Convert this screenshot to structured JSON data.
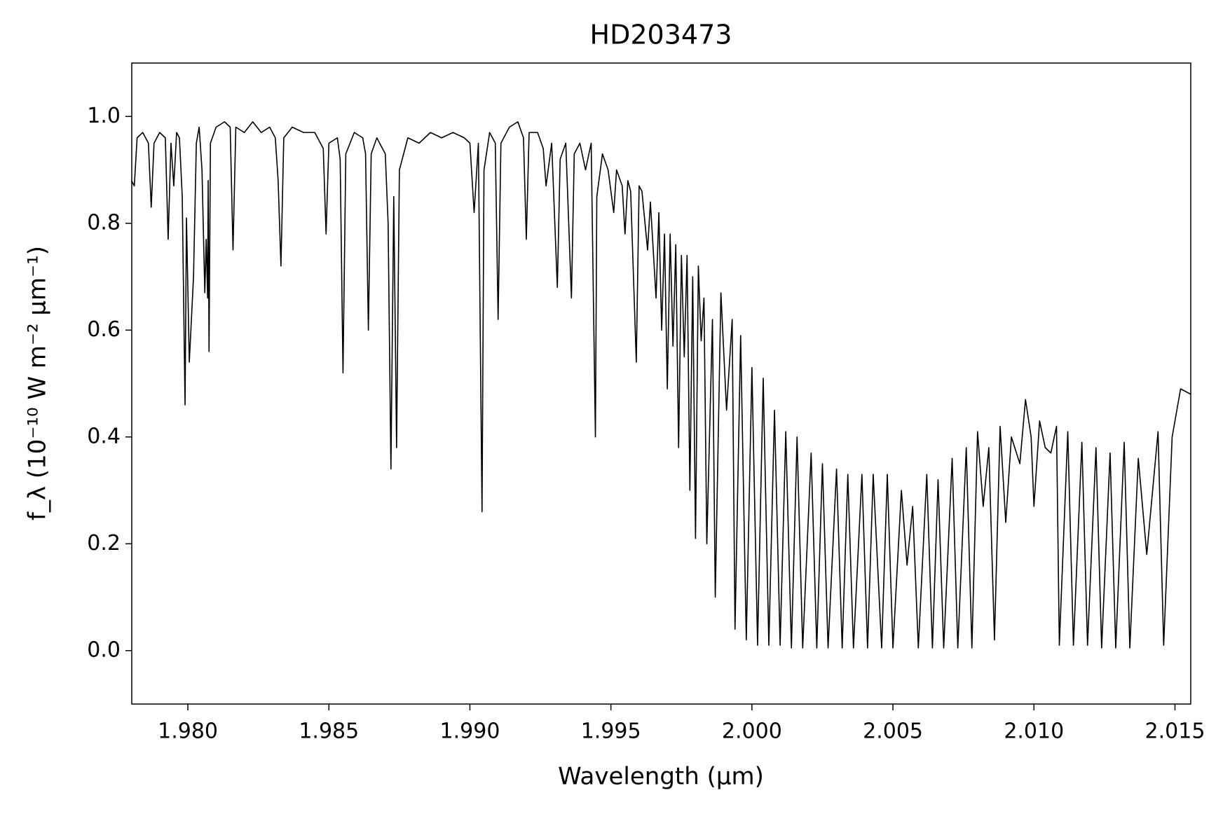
{
  "chart_data": {
    "type": "line",
    "title": "HD203473",
    "xlabel": "Wavelength (μm)",
    "ylabel": "f_λ (10⁻¹⁰ W m⁻² μm⁻¹)",
    "xlim": [
      1.97801,
      2.01556
    ],
    "ylim": [
      -0.1,
      1.1
    ],
    "xticks": [
      {
        "value": 1.98,
        "label": "1.980"
      },
      {
        "value": 1.985,
        "label": "1.985"
      },
      {
        "value": 1.99,
        "label": "1.990"
      },
      {
        "value": 1.995,
        "label": "1.995"
      },
      {
        "value": 2.0,
        "label": "2.000"
      },
      {
        "value": 2.005,
        "label": "2.005"
      },
      {
        "value": 2.01,
        "label": "2.010"
      },
      {
        "value": 2.015,
        "label": "2.015"
      }
    ],
    "yticks": [
      {
        "value": 0,
        "label": "0.0"
      },
      0.2,
      0.4,
      0.6,
      0.8,
      {
        "value": 1,
        "label": "1.0"
      }
    ],
    "grid": false,
    "x": [
      1.978,
      1.9781,
      1.9782,
      1.9784,
      1.9786,
      1.9787,
      1.9788,
      1.979,
      1.9792,
      1.9793,
      1.9794,
      1.9795,
      1.9796,
      1.9797,
      1.9798,
      1.9799,
      1.97995,
      1.98005,
      1.9802,
      1.9803,
      1.9804,
      1.9805,
      1.9806,
      1.98065,
      1.9807,
      1.98072,
      1.98075,
      1.9808,
      1.981,
      1.9813,
      1.9815,
      1.9816,
      1.9817,
      1.982,
      1.9823,
      1.9826,
      1.9829,
      1.9831,
      1.9832,
      1.9833,
      1.9834,
      1.9837,
      1.9841,
      1.9845,
      1.9848,
      1.9849,
      1.985,
      1.9853,
      1.9854,
      1.9855,
      1.9856,
      1.9859,
      1.9862,
      1.9863,
      1.9864,
      1.9865,
      1.9867,
      1.987,
      1.9871,
      1.9872,
      1.9873,
      1.9874,
      1.9875,
      1.9878,
      1.9882,
      1.9886,
      1.989,
      1.9894,
      1.9898,
      1.99,
      1.99015,
      1.9903,
      1.99043,
      1.9905,
      1.9907,
      1.9909,
      1.991,
      1.9911,
      1.9914,
      1.9917,
      1.9919,
      1.992,
      1.9921,
      1.9924,
      1.9926,
      1.9927,
      1.9929,
      1.9931,
      1.9932,
      1.9934,
      1.9936,
      1.9937,
      1.9939,
      1.9941,
      1.9943,
      1.99445,
      1.9945,
      1.9947,
      1.9949,
      1.9951,
      1.9952,
      1.9954,
      1.9955,
      1.9956,
      1.9957,
      1.9959,
      1.996,
      1.9961,
      1.9963,
      1.9964,
      1.9966,
      1.9967,
      1.9968,
      1.9969,
      1.997,
      1.9971,
      1.9972,
      1.9973,
      1.9974,
      1.9975,
      1.9976,
      1.9977,
      1.9978,
      1.9979,
      1.998,
      1.9981,
      1.9982,
      1.9983,
      1.9984,
      1.9986,
      1.9987,
      1.9989,
      1.9991,
      1.9993,
      1.9994,
      1.9996,
      1.9998,
      2.0,
      2.0002,
      2.0004,
      2.0006,
      2.0008,
      2.001,
      2.0012,
      2.0014,
      2.0016,
      2.0018,
      2.0021,
      2.0023,
      2.0025,
      2.0027,
      2.003,
      2.0032,
      2.0034,
      2.0036,
      2.0039,
      2.0041,
      2.0043,
      2.0046,
      2.0048,
      2.005,
      2.0053,
      2.0055,
      2.0057,
      2.0059,
      2.0062,
      2.0064,
      2.0066,
      2.0068,
      2.0071,
      2.0073,
      2.0076,
      2.0078,
      2.008,
      2.0082,
      2.0084,
      2.0086,
      2.0088,
      2.009,
      2.0092,
      2.0095,
      2.0097,
      2.0099,
      2.01,
      2.0102,
      2.0104,
      2.0106,
      2.0108,
      2.0109,
      2.0112,
      2.0114,
      2.0117,
      2.0119,
      2.0122,
      2.0124,
      2.0127,
      2.0129,
      2.0132,
      2.0134,
      2.0137,
      2.014,
      2.0144,
      2.0146,
      2.0149,
      2.0152,
      2.01556
    ],
    "series": [
      {
        "color": "#000000",
        "values": [
          0.88,
          0.87,
          0.96,
          0.97,
          0.95,
          0.83,
          0.95,
          0.97,
          0.96,
          0.77,
          0.95,
          0.87,
          0.97,
          0.96,
          0.85,
          0.46,
          0.81,
          0.54,
          0.7,
          0.95,
          0.98,
          0.9,
          0.67,
          0.77,
          0.66,
          0.88,
          0.56,
          0.95,
          0.98,
          0.99,
          0.98,
          0.75,
          0.98,
          0.97,
          0.99,
          0.97,
          0.98,
          0.96,
          0.88,
          0.72,
          0.96,
          0.98,
          0.97,
          0.97,
          0.94,
          0.78,
          0.95,
          0.96,
          0.92,
          0.52,
          0.93,
          0.97,
          0.96,
          0.93,
          0.6,
          0.93,
          0.96,
          0.93,
          0.8,
          0.34,
          0.85,
          0.38,
          0.9,
          0.96,
          0.95,
          0.97,
          0.96,
          0.97,
          0.96,
          0.95,
          0.82,
          0.95,
          0.26,
          0.9,
          0.97,
          0.95,
          0.62,
          0.95,
          0.98,
          0.99,
          0.96,
          0.77,
          0.97,
          0.97,
          0.94,
          0.87,
          0.95,
          0.68,
          0.92,
          0.95,
          0.66,
          0.93,
          0.95,
          0.9,
          0.95,
          0.4,
          0.85,
          0.93,
          0.9,
          0.82,
          0.9,
          0.87,
          0.78,
          0.88,
          0.86,
          0.54,
          0.87,
          0.86,
          0.75,
          0.84,
          0.66,
          0.82,
          0.6,
          0.78,
          0.49,
          0.78,
          0.57,
          0.76,
          0.38,
          0.74,
          0.55,
          0.74,
          0.3,
          0.7,
          0.21,
          0.72,
          0.58,
          0.66,
          0.2,
          0.62,
          0.1,
          0.67,
          0.45,
          0.62,
          0.04,
          0.59,
          0.02,
          0.53,
          0.01,
          0.51,
          0.01,
          0.45,
          0.01,
          0.41,
          0.005,
          0.4,
          0.005,
          0.37,
          0.005,
          0.35,
          0.005,
          0.34,
          0.005,
          0.33,
          0.005,
          0.33,
          0.005,
          0.33,
          0.005,
          0.33,
          0.005,
          0.3,
          0.16,
          0.27,
          0.005,
          0.33,
          0.005,
          0.32,
          0.005,
          0.36,
          0.005,
          0.38,
          0.005,
          0.41,
          0.27,
          0.38,
          0.02,
          0.42,
          0.24,
          0.4,
          0.35,
          0.47,
          0.4,
          0.27,
          0.43,
          0.38,
          0.37,
          0.42,
          0.01,
          0.41,
          0.01,
          0.39,
          0.01,
          0.38,
          0.005,
          0.37,
          0.005,
          0.39,
          0.005,
          0.36,
          0.18,
          0.41,
          0.01,
          0.4,
          0.49,
          0.48
        ]
      }
    ]
  }
}
